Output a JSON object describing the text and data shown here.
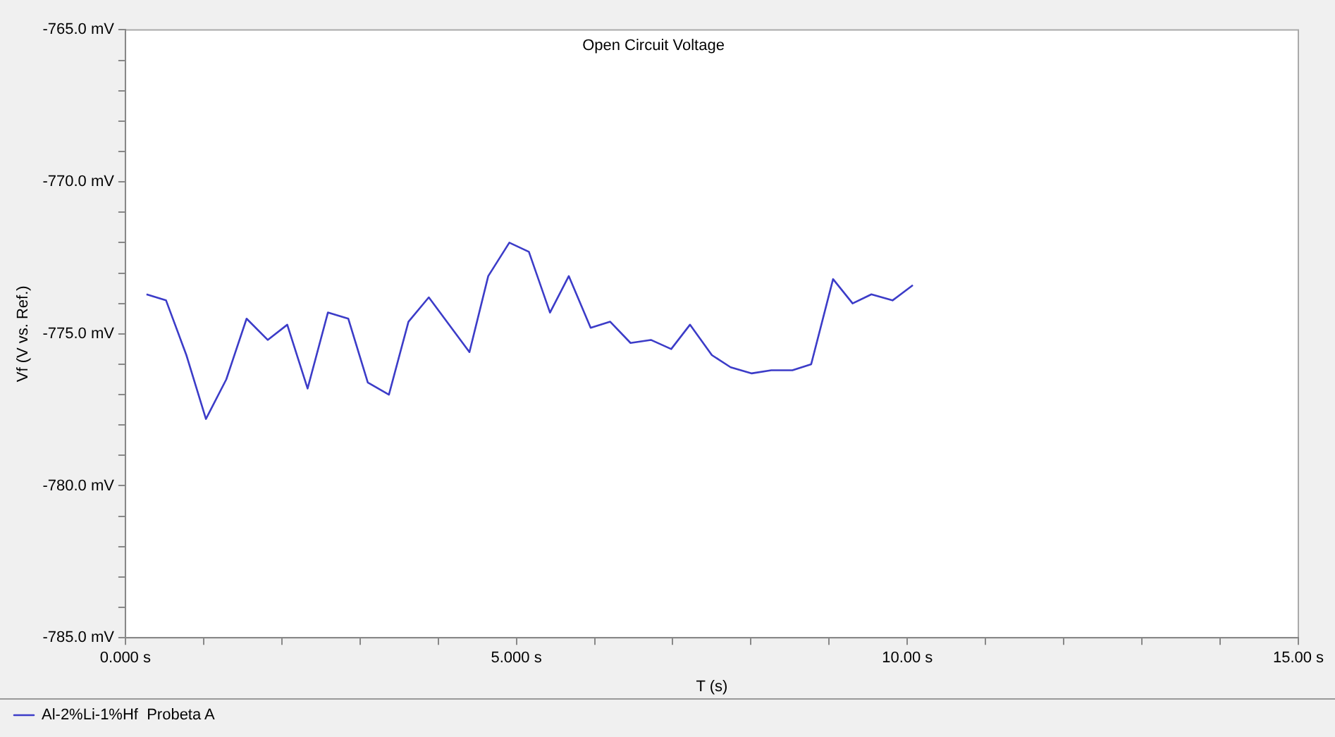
{
  "chart_data": {
    "type": "line",
    "title": "Open Circuit Voltage",
    "xlabel": "T (s)",
    "ylabel": "Vf (V vs. Ref.)",
    "x": [
      0.27,
      0.52,
      0.78,
      1.03,
      1.29,
      1.55,
      1.82,
      2.07,
      2.33,
      2.59,
      2.85,
      3.1,
      3.37,
      3.62,
      3.88,
      4.4,
      4.64,
      4.91,
      5.16,
      5.43,
      5.67,
      5.95,
      6.2,
      6.46,
      6.72,
      6.98,
      7.22,
      7.5,
      7.74,
      8.01,
      8.26,
      8.53,
      8.77,
      9.05,
      9.3,
      9.54,
      9.81,
      10.07
    ],
    "series": [
      {
        "name": "Al-2%Li-1%Hf  Probeta A",
        "color": "#3c3cc8",
        "values": [
          -773.7,
          -773.9,
          -775.7,
          -777.8,
          -776.5,
          -774.5,
          -775.2,
          -774.7,
          -776.8,
          -774.3,
          -774.5,
          -776.6,
          -777.0,
          -774.6,
          -773.8,
          -775.6,
          -773.1,
          -772.0,
          -772.3,
          -774.3,
          -773.1,
          -774.8,
          -774.6,
          -775.3,
          -775.2,
          -775.5,
          -774.7,
          -775.7,
          -776.1,
          -776.3,
          -776.2,
          -776.2,
          -776.0,
          -773.2,
          -774.0,
          -773.7,
          -773.9,
          -773.4
        ]
      }
    ],
    "xlim": [
      0,
      15
    ],
    "xticks": [
      {
        "value": 0,
        "label": "0.000 s"
      },
      {
        "value": 1,
        "label": null
      },
      {
        "value": 2,
        "label": null
      },
      {
        "value": 3,
        "label": null
      },
      {
        "value": 4,
        "label": null
      },
      {
        "value": 5,
        "label": "5.000 s"
      },
      {
        "value": 6,
        "label": null
      },
      {
        "value": 7,
        "label": null
      },
      {
        "value": 8,
        "label": null
      },
      {
        "value": 9,
        "label": null
      },
      {
        "value": 10,
        "label": "10.00 s"
      },
      {
        "value": 11,
        "label": null
      },
      {
        "value": 12,
        "label": null
      },
      {
        "value": 13,
        "label": null
      },
      {
        "value": 14,
        "label": null
      },
      {
        "value": 15,
        "label": "15.00 s"
      }
    ],
    "ylim": [
      -785,
      -765
    ],
    "yticks": [
      {
        "value": -785,
        "label": "-785.0 mV"
      },
      {
        "value": -784,
        "label": null
      },
      {
        "value": -783,
        "label": null
      },
      {
        "value": -782,
        "label": null
      },
      {
        "value": -781,
        "label": null
      },
      {
        "value": -780,
        "label": "-780.0 mV"
      },
      {
        "value": -779,
        "label": null
      },
      {
        "value": -778,
        "label": null
      },
      {
        "value": -777,
        "label": null
      },
      {
        "value": -776,
        "label": null
      },
      {
        "value": -775,
        "label": "-775.0 mV"
      },
      {
        "value": -774,
        "label": null
      },
      {
        "value": -773,
        "label": null
      },
      {
        "value": -772,
        "label": null
      },
      {
        "value": -771,
        "label": null
      },
      {
        "value": -770,
        "label": "-770.0 mV"
      },
      {
        "value": -769,
        "label": null
      },
      {
        "value": -768,
        "label": null
      },
      {
        "value": -767,
        "label": null
      },
      {
        "value": -766,
        "label": null
      },
      {
        "value": -765,
        "label": "-765.0 mV"
      }
    ],
    "grid": false,
    "legend": "bottom left",
    "marker": "none",
    "line_style": "solid"
  }
}
